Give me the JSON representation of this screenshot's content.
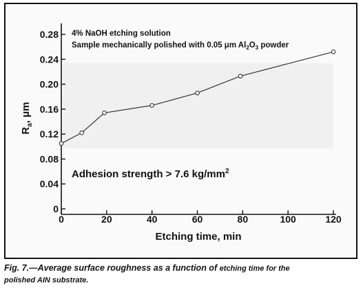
{
  "chart_data": {
    "type": "line",
    "annotation_line1": "4% NaOH etching solution",
    "annotation_line2_pre": "Sample mechanically polished with 0.05 ",
    "annotation_line2_unit": "μm Al",
    "annotation_line2_sub1": "2",
    "annotation_line2_mid": "O",
    "annotation_line2_sub2": "3",
    "annotation_line2_post": " powder",
    "adhesion_label": "Adhesion strength > 7.6 kg/mm",
    "adhesion_sup": "2",
    "xlabel": "Etching time, min",
    "ylabel_main": "R",
    "ylabel_sub": "a",
    "ylabel_unit": ", μm",
    "xlim": [
      0,
      120
    ],
    "ylim": [
      0,
      0.28
    ],
    "x_ticks": [
      0,
      20,
      40,
      60,
      80,
      100,
      120
    ],
    "x_tick_labels": [
      "0",
      "20",
      "40",
      "60",
      "80",
      "100",
      "120"
    ],
    "y_ticks": [
      0,
      0.04,
      0.08,
      0.12,
      0.16,
      0.2,
      0.24,
      0.28
    ],
    "y_tick_labels": [
      "0",
      "0.04",
      "0.08",
      "0.12",
      "0.16",
      "0.20",
      "0.24",
      "0.28"
    ],
    "x": [
      0,
      9,
      19,
      40,
      60,
      79,
      120
    ],
    "y": [
      0.105,
      0.122,
      0.154,
      0.166,
      0.186,
      0.213,
      0.252
    ],
    "grid": false,
    "legend": "none"
  },
  "caption": {
    "part1": "Fig. 7.—Average surface roughness as a function of ",
    "part2": "etching time for the",
    "part3": "polished AIN substrate."
  }
}
